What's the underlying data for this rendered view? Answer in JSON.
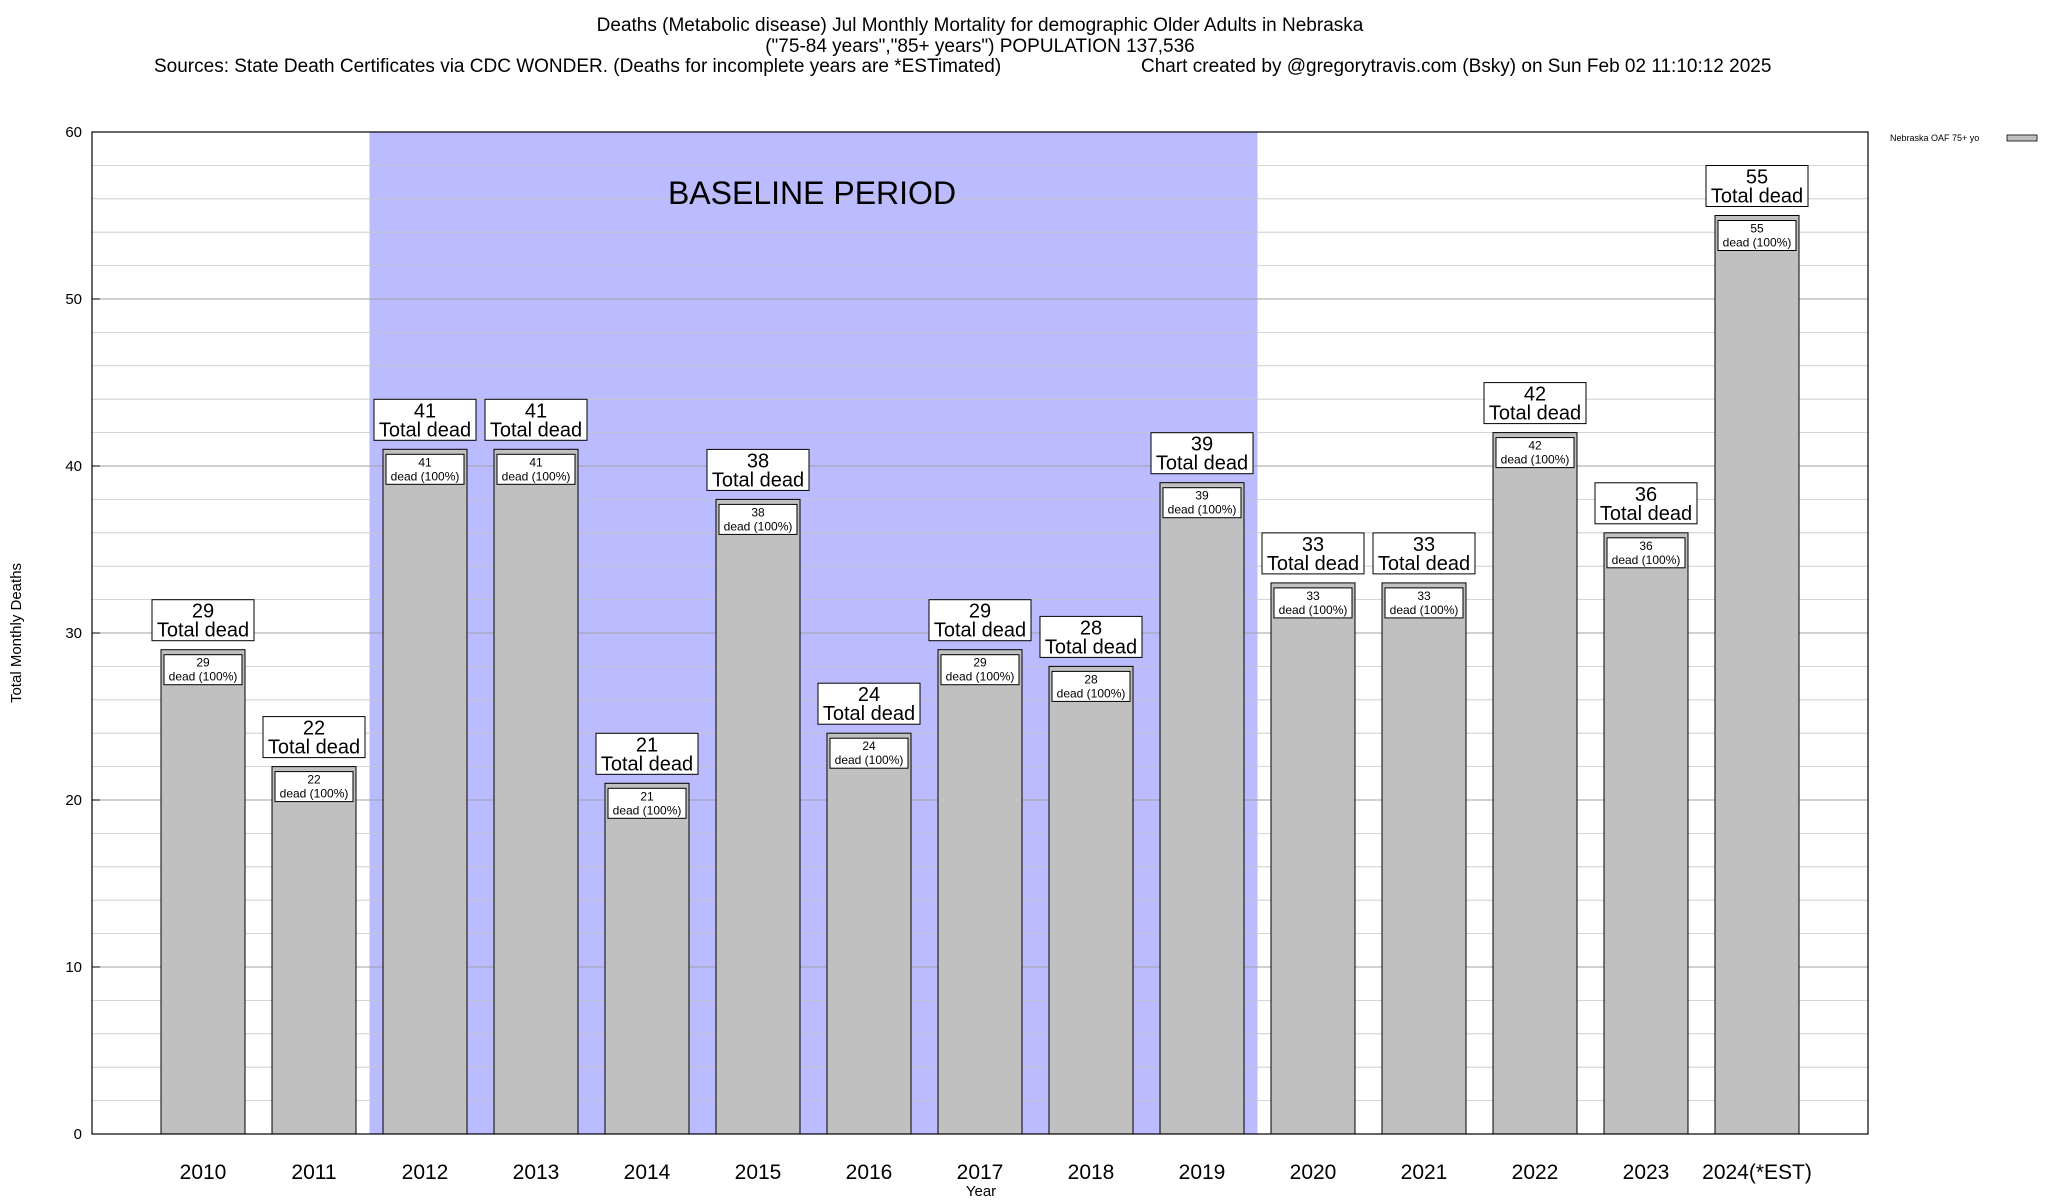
{
  "chart_data": {
    "type": "bar",
    "title_lines": [
      "Deaths (Metabolic disease) Jul Monthly Mortality for demographic Older Adults in Nebraska",
      "(\"75-84 years\",\"85+ years\") POPULATION 137,536"
    ],
    "sources": "Sources: State Death Certificates via CDC WONDER. (Deaths for incomplete years are *ESTimated)",
    "credit": "Chart created by @gregorytravis.com (Bsky) on Sun Feb 02 11:10:12 2025",
    "xlabel": "Year",
    "ylabel": "Total Monthly Deaths",
    "ylim": [
      0,
      60
    ],
    "yticks": [
      "0",
      "10",
      "20",
      "30",
      "40",
      "50",
      "60"
    ],
    "grid": true,
    "legend": {
      "position": "top-right",
      "entries": [
        "Nebraska OAF 75+ yo"
      ]
    },
    "baseline_period": {
      "label": "BASELINE PERIOD",
      "start": "2012",
      "end": "2019",
      "color": "#bbbbff"
    },
    "bar_color": "#c0c0c0",
    "categories": [
      "2010",
      "2011",
      "2012",
      "2013",
      "2014",
      "2015",
      "2016",
      "2017",
      "2018",
      "2019",
      "2020",
      "2021",
      "2022",
      "2023",
      "2024(*EST)"
    ],
    "series": [
      {
        "name": "Nebraska OAF 75+ yo",
        "values": [
          29,
          22,
          41,
          41,
          21,
          38,
          24,
          29,
          28,
          39,
          33,
          33,
          42,
          36,
          55
        ]
      }
    ],
    "total_labels": [
      "29",
      "22",
      "41",
      "41",
      "21",
      "38",
      "24",
      "29",
      "28",
      "39",
      "33",
      "33",
      "42",
      "36",
      "55"
    ],
    "total_caption": "Total dead",
    "inner_labels": [
      "29",
      "22",
      "41",
      "41",
      "21",
      "38",
      "24",
      "29",
      "28",
      "39",
      "33",
      "33",
      "42",
      "36",
      "55"
    ],
    "inner_caption": "dead (100%)"
  }
}
